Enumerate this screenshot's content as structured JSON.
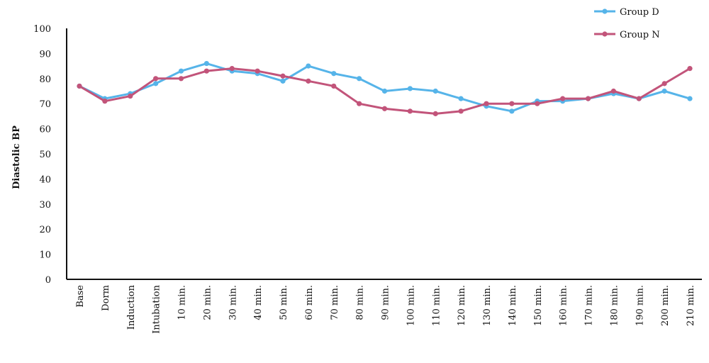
{
  "chart_data": {
    "type": "line",
    "categories": [
      "Base",
      "Dorm",
      "Induction",
      "Intubation",
      "10 min.",
      "20 min.",
      "30 min.",
      "40 min.",
      "50 min.",
      "60 min.",
      "70 min.",
      "80 min.",
      "90 min.",
      "100 min.",
      "110 min.",
      "120 min.",
      "130 min.",
      "140 min.",
      "150 min.",
      "160 min.",
      "170 min.",
      "180 min.",
      "190 min.",
      "200 min.",
      "210 min."
    ],
    "series": [
      {
        "name": "Group D",
        "color": "#56B4E9",
        "values": [
          77,
          72,
          74,
          78,
          83,
          86,
          83,
          82,
          79,
          85,
          82,
          80,
          75,
          76,
          75,
          72,
          69,
          67,
          71,
          71,
          72,
          74,
          72,
          75,
          72
        ]
      },
      {
        "name": "Group N",
        "color": "#C2547A",
        "values": [
          77,
          71,
          73,
          80,
          80,
          83,
          84,
          83,
          81,
          79,
          77,
          70,
          68,
          67,
          66,
          67,
          70,
          70,
          70,
          72,
          72,
          75,
          72,
          78,
          84
        ]
      }
    ],
    "ylabel": "Diastolic BP",
    "xlabel": "",
    "ylim": [
      0,
      100
    ],
    "yticks": [
      0,
      10,
      20,
      30,
      40,
      50,
      60,
      70,
      80,
      90,
      100
    ],
    "grid": false,
    "legend_position": "top-right"
  }
}
